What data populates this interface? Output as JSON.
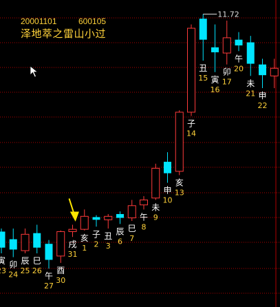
{
  "header": {
    "date": "20001101",
    "code": "600105",
    "title": "泽地萃之雷山小过"
  },
  "colors": {
    "background": "#000000",
    "up": "#ff3a3a",
    "down": "#00e5ff",
    "grid": "#b00000",
    "label_branch": "#ffffff",
    "label_day": "#ffd23a",
    "arrow": "#ffe600"
  },
  "cursor": {
    "icon": "pointer-arrow-icon"
  },
  "annotation": {
    "icon": "yellow-arrow-icon",
    "target_day": "31"
  },
  "chart_data": {
    "type": "candlestick",
    "price_ylim": [
      5.0,
      12.0
    ],
    "max_label": "11.72",
    "candles": [
      {
        "branch": "寅",
        "day": "23",
        "o": 6.02,
        "h": 6.1,
        "l": 5.45,
        "c": 5.6
      },
      {
        "branch": "卯",
        "day": "24",
        "o": 5.82,
        "h": 6.1,
        "l": 5.35,
        "c": 5.55
      },
      {
        "branch": "辰",
        "day": "25",
        "o": 5.52,
        "h": 6.1,
        "l": 5.45,
        "c": 5.95
      },
      {
        "branch": "巳",
        "day": "26",
        "o": 5.98,
        "h": 6.2,
        "l": 5.45,
        "c": 5.6
      },
      {
        "branch": "午",
        "day": "27",
        "o": 5.7,
        "h": 5.8,
        "l": 5.05,
        "c": 5.28
      },
      {
        "branch": "酉",
        "day": "30",
        "o": 5.38,
        "h": 6.05,
        "l": 5.2,
        "c": 6.02
      },
      {
        "branch": "戌",
        "day": "31",
        "o": 6.02,
        "h": 6.2,
        "l": 5.88,
        "c": 6.08
      },
      {
        "branch": "亥",
        "day": "1",
        "o": 6.08,
        "h": 6.6,
        "l": 6.05,
        "c": 6.42
      },
      {
        "branch": "子",
        "day": "2",
        "o": 6.4,
        "h": 6.45,
        "l": 6.15,
        "c": 6.33
      },
      {
        "branch": "丑",
        "day": "3",
        "o": 6.33,
        "h": 6.48,
        "l": 6.1,
        "c": 6.42
      },
      {
        "branch": "辰",
        "day": "6",
        "o": 6.48,
        "h": 6.55,
        "l": 6.22,
        "c": 6.38
      },
      {
        "branch": "巳",
        "day": "7",
        "o": 6.38,
        "h": 6.85,
        "l": 6.3,
        "c": 6.7
      },
      {
        "branch": "午",
        "day": "8",
        "o": 6.72,
        "h": 6.95,
        "l": 6.6,
        "c": 6.85
      },
      {
        "branch": "未",
        "day": "9",
        "o": 6.9,
        "h": 7.8,
        "l": 6.85,
        "c": 7.68
      },
      {
        "branch": "申",
        "day": "10",
        "o": 7.85,
        "h": 8.1,
        "l": 7.3,
        "c": 7.55
      },
      {
        "branch": "亥",
        "day": "13",
        "o": 7.6,
        "h": 9.2,
        "l": 7.5,
        "c": 9.15
      },
      {
        "branch": "子",
        "day": "14",
        "o": 9.15,
        "h": 11.45,
        "l": 9.05,
        "c": 11.35
      },
      {
        "branch": "丑",
        "day": "15",
        "o": 11.6,
        "h": 11.72,
        "l": 10.5,
        "c": 11.05
      },
      {
        "branch": "寅",
        "day": "16",
        "o": 10.85,
        "h": 11.45,
        "l": 10.2,
        "c": 10.72
      },
      {
        "branch": "卯",
        "day": "17",
        "o": 10.7,
        "h": 11.55,
        "l": 10.4,
        "c": 11.1
      },
      {
        "branch": "午",
        "day": "20",
        "o": 11.05,
        "h": 11.25,
        "l": 10.75,
        "c": 10.9
      },
      {
        "branch": "未",
        "day": "21",
        "o": 10.98,
        "h": 11.15,
        "l": 10.1,
        "c": 10.42
      },
      {
        "branch": "申",
        "day": "22",
        "o": 10.4,
        "h": 10.55,
        "l": 9.78,
        "c": 10.12
      },
      {
        "branch": "",
        "day": "",
        "o": 10.1,
        "h": 10.55,
        "l": 9.78,
        "c": 10.3
      }
    ]
  }
}
